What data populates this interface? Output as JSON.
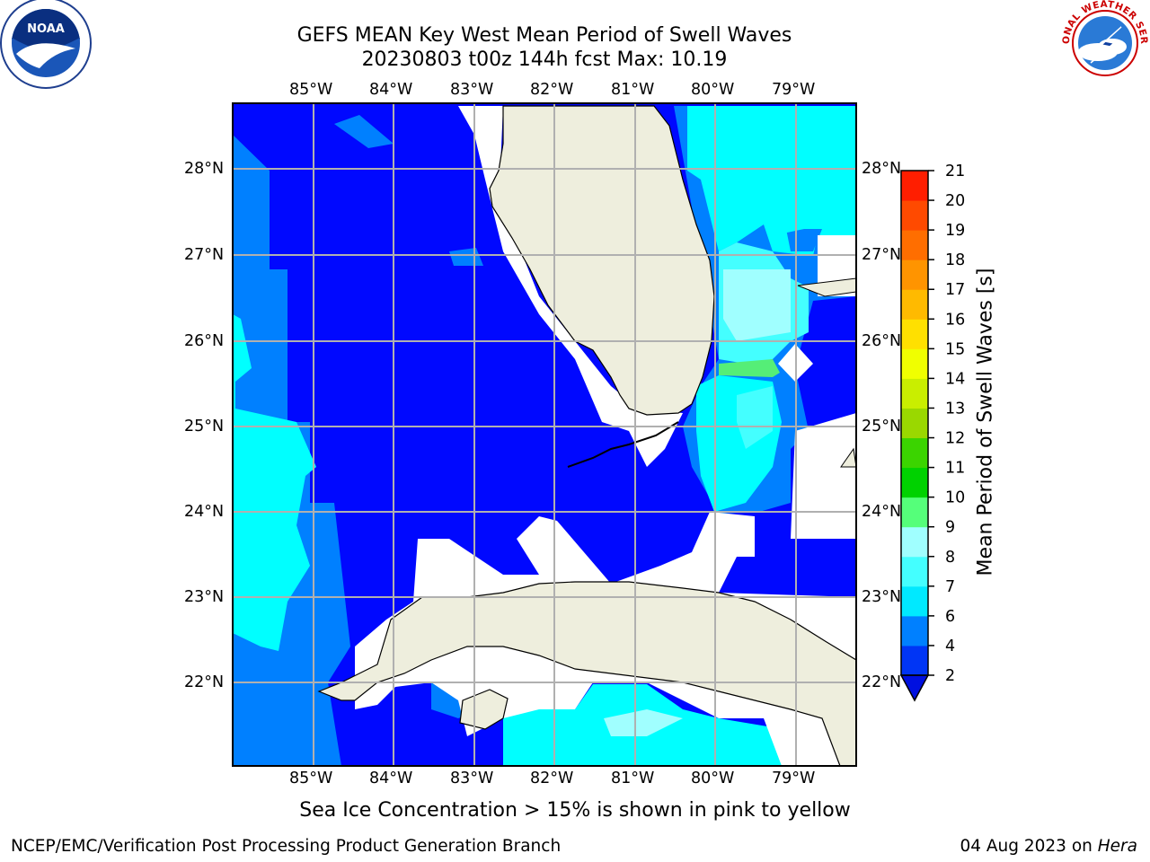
{
  "title": {
    "line1": "GEFS MEAN Key West Mean Period of Swell Waves",
    "line2": "20230803 t00z 144h fcst   Max: 10.19"
  },
  "lon_labels": [
    "85°W",
    "84°W",
    "83°W",
    "82°W",
    "81°W",
    "80°W",
    "79°W"
  ],
  "lat_labels": [
    "28°N",
    "27°N",
    "26°N",
    "25°N",
    "24°N",
    "23°N",
    "22°N"
  ],
  "colorbar": {
    "label": "Mean Period of Swell Waves [s]",
    "ticks": [
      "2",
      "4",
      "6",
      "7",
      "8",
      "9",
      "10",
      "11",
      "12",
      "13",
      "14",
      "15",
      "16",
      "17",
      "18",
      "19",
      "20",
      "21"
    ],
    "colors": [
      "#0035f5",
      "#0080ff",
      "#00e9ff",
      "#44ffff",
      "#a0ffff",
      "#55ff7a",
      "#00d200",
      "#3bd400",
      "#9ad800",
      "#c9ee00",
      "#f0ff00",
      "#ffe000",
      "#ffba00",
      "#ff9400",
      "#ff6e00",
      "#ff4a00",
      "#ff1e00"
    ],
    "extend_color": "#0010e0"
  },
  "colors": {
    "ocean_deep": "#0008ff",
    "ocean_blue": "#0080ff",
    "ocean_cyan": "#00ffff",
    "ocean_lightcyan": "#44ffff",
    "ocean_pale": "#a0ffff",
    "ocean_green": "#55ee77",
    "land": "#eeeedd",
    "grid": "#b0b0b0"
  },
  "logos": {
    "left": "NOAA",
    "right": "NATIONAL WEATHER SERVICE"
  },
  "footnote": "Sea Ice Concentration > 15% is shown in pink to yellow",
  "footer": {
    "left": "NCEP/EMC/Verification Post Processing Product Generation Branch",
    "right_date": "04 Aug 2023 on ",
    "right_host": "Hera"
  }
}
